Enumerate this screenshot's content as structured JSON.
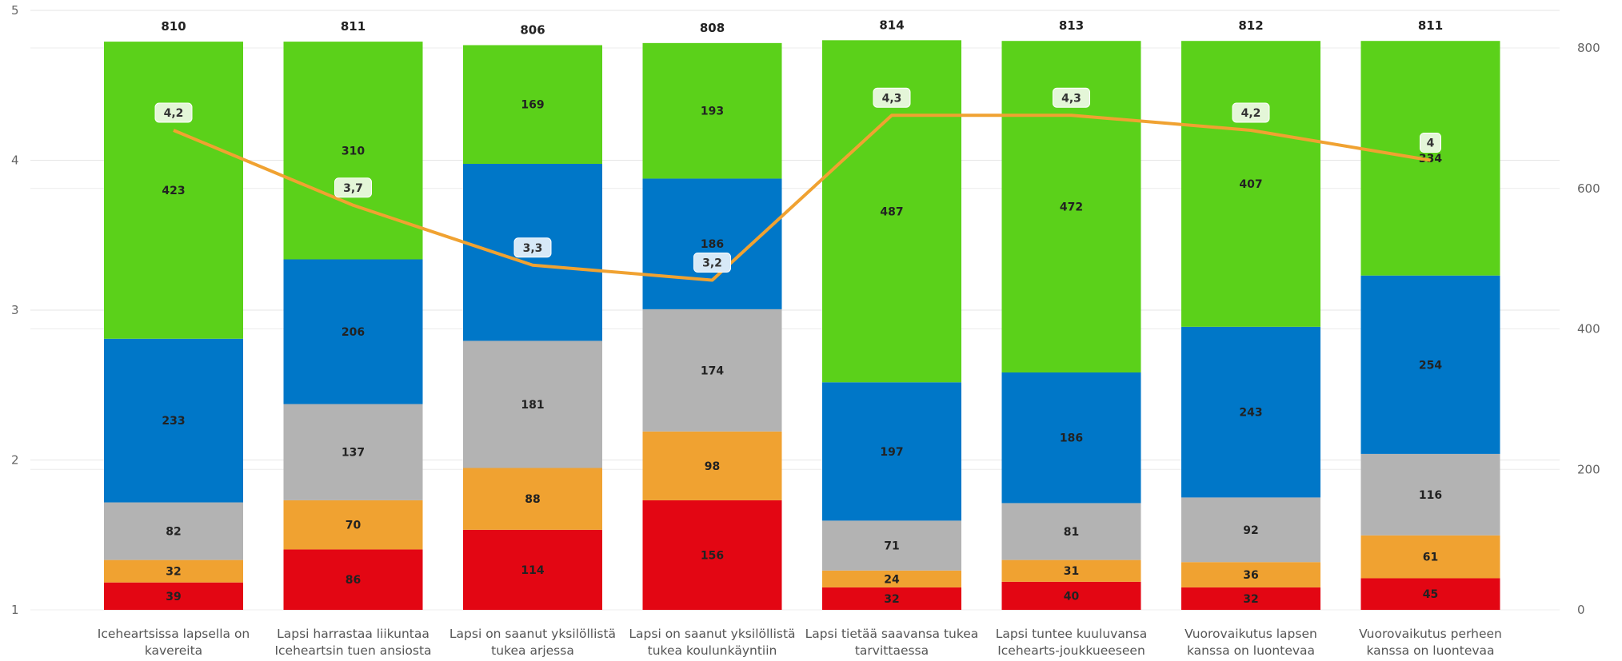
{
  "chart_data": {
    "type": "bar",
    "stacked": true,
    "categories": [
      [
        "Iceheartsissa lapsella on",
        "kavereita"
      ],
      [
        "Lapsi harrastaa liikuntaa",
        "Icehearts​in tuen ansiosta"
      ],
      [
        "Lapsi on saanut yksilöllistä",
        "tukea arjessa"
      ],
      [
        "Lapsi on saanut yksilöllistä",
        "tukea koulunkäyntiin"
      ],
      [
        "Lapsi tietää saavansa tukea",
        "tarvittaessa"
      ],
      [
        "Lapsi tuntee kuuluvansa",
        "Icehearts-joukkueeseen"
      ],
      [
        "Vuorovaikutus lapsen",
        "kanssa on luontevaa"
      ],
      [
        "Vuorovaikutus perheen",
        "kanssa on luontevaa"
      ]
    ],
    "series": [
      {
        "color": "#e30613",
        "values": [
          39,
          86,
          114,
          156,
          32,
          40,
          32,
          45
        ]
      },
      {
        "color": "#f0a231",
        "values": [
          32,
          70,
          88,
          98,
          24,
          31,
          36,
          61
        ]
      },
      {
        "color": "#b3b3b3",
        "values": [
          82,
          137,
          181,
          174,
          71,
          81,
          92,
          116
        ]
      },
      {
        "color": "#0077c8",
        "values": [
          233,
          206,
          252,
          186,
          197,
          186,
          243,
          254
        ]
      },
      {
        "color": "#5bd11a",
        "values": [
          423,
          310,
          169,
          193,
          487,
          472,
          407,
          334
        ]
      }
    ],
    "totals": [
      810,
      811,
      806,
      808,
      814,
      813,
      812,
      811
    ],
    "line": {
      "color": "#f0a231",
      "axis": "left",
      "values": [
        4.2,
        3.7,
        3.3,
        3.2,
        4.3,
        4.3,
        4.2,
        4
      ],
      "labels": [
        "4,2",
        "3,7",
        "3,3",
        "3,2",
        "4,3",
        "4,3",
        "4,2",
        "4"
      ],
      "label_colors": [
        "#e4f6d8",
        "#e4f6d8",
        "#d7e9f7",
        "#d7e9f7",
        "#e4f6d8",
        "#e4f6d8",
        "#e4f6d8",
        "#e4f6d8"
      ]
    },
    "y_left": {
      "ticks": [
        "1",
        "2",
        "3",
        "4",
        "5"
      ],
      "range": [
        1,
        5
      ]
    },
    "y_right": {
      "ticks": [
        "0",
        "200",
        "400",
        "600",
        "800"
      ],
      "range": [
        0,
        800
      ]
    },
    "grid": true
  }
}
